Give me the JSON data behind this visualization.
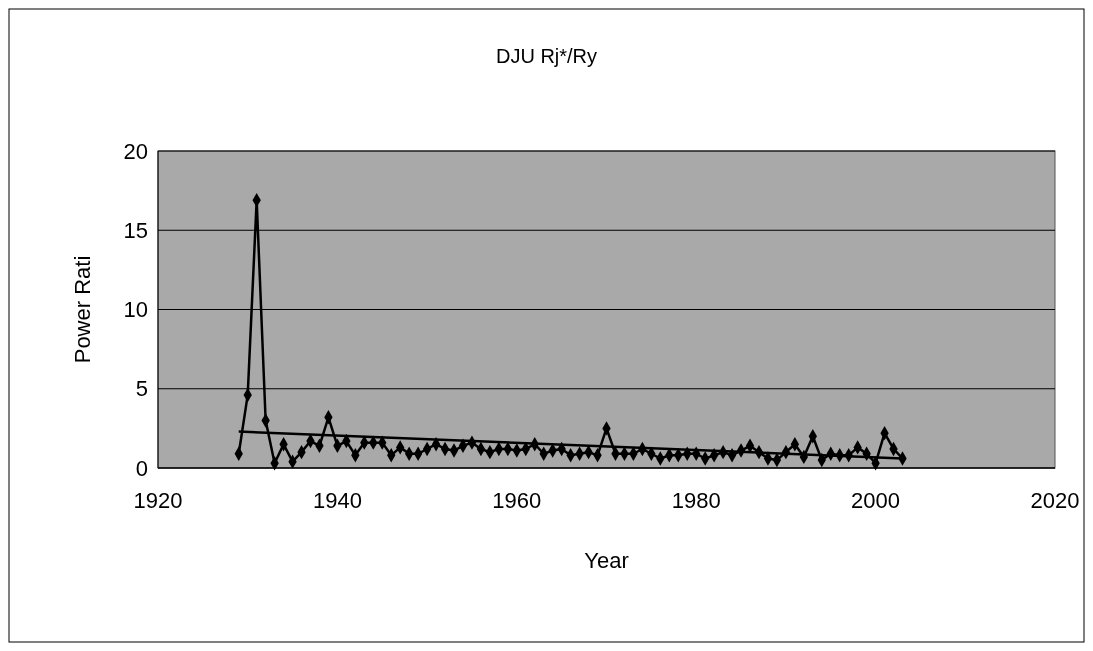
{
  "chart_data": {
    "type": "line",
    "title": "DJU Rj*/Ry",
    "xlabel": "Year",
    "ylabel": "Power Rati",
    "xlim": [
      1920,
      2020
    ],
    "xticks": [
      1920,
      1940,
      1960,
      1980,
      2000,
      2020
    ],
    "ylim": [
      0,
      20
    ],
    "yticks": [
      0,
      5,
      10,
      15,
      20
    ],
    "grid": "y",
    "marker": "diamond",
    "line_style": "solid",
    "x": [
      1929,
      1930,
      1931,
      1932,
      1933,
      1934,
      1935,
      1936,
      1937,
      1938,
      1939,
      1940,
      1941,
      1942,
      1943,
      1944,
      1945,
      1946,
      1947,
      1948,
      1949,
      1950,
      1951,
      1952,
      1953,
      1954,
      1955,
      1956,
      1957,
      1958,
      1959,
      1960,
      1961,
      1962,
      1963,
      1964,
      1965,
      1966,
      1967,
      1968,
      1969,
      1970,
      1971,
      1972,
      1973,
      1974,
      1975,
      1976,
      1977,
      1978,
      1979,
      1980,
      1981,
      1982,
      1983,
      1984,
      1985,
      1986,
      1987,
      1988,
      1989,
      1990,
      1991,
      1992,
      1993,
      1994,
      1995,
      1996,
      1997,
      1998,
      1999,
      2000,
      2001,
      2002,
      2003
    ],
    "series": [
      {
        "color": "#000000",
        "values": [
          0.9,
          4.6,
          16.9,
          3.0,
          0.3,
          1.5,
          0.4,
          1.0,
          1.7,
          1.4,
          3.2,
          1.4,
          1.7,
          0.8,
          1.6,
          1.6,
          1.6,
          0.8,
          1.3,
          0.9,
          0.9,
          1.2,
          1.5,
          1.2,
          1.1,
          1.4,
          1.6,
          1.2,
          1.0,
          1.2,
          1.2,
          1.1,
          1.2,
          1.5,
          0.9,
          1.1,
          1.2,
          0.8,
          0.9,
          1.0,
          0.8,
          2.5,
          0.9,
          0.9,
          0.9,
          1.2,
          0.9,
          0.6,
          0.8,
          0.8,
          0.9,
          0.9,
          0.6,
          0.8,
          1.0,
          0.8,
          1.1,
          1.4,
          1.0,
          0.6,
          0.5,
          1.0,
          1.5,
          0.7,
          2.0,
          0.5,
          0.9,
          0.8,
          0.8,
          1.3,
          0.9,
          0.3,
          2.2,
          1.2,
          0.6
        ]
      },
      {
        "type": "line",
        "marker": "none",
        "color": "#000000",
        "x": [
          1929,
          2003
        ],
        "values": [
          2.3,
          0.6
        ]
      }
    ]
  }
}
